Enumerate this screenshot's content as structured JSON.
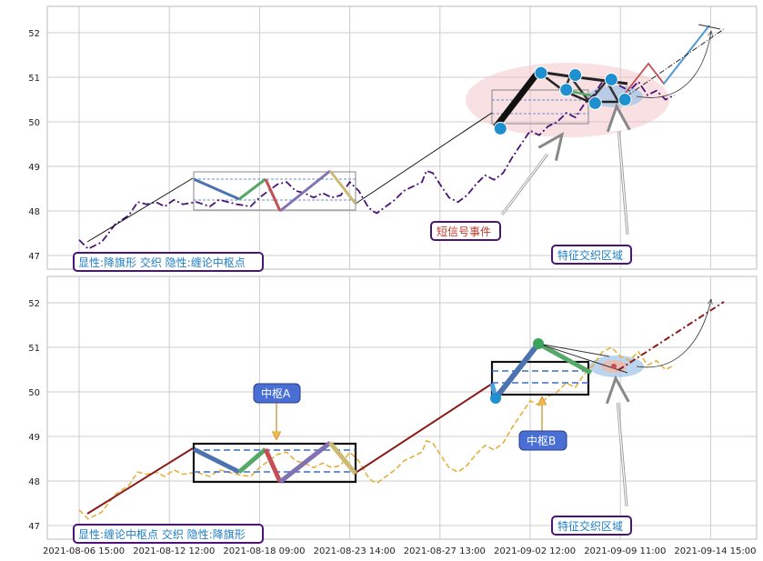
{
  "chart_data": {
    "type": "line",
    "x_ticks": [
      "2021-08-06 15:00",
      "2021-08-12 12:00",
      "2021-08-18 09:00",
      "2021-08-23 14:00",
      "2021-08-27 13:00",
      "2021-09-02 12:00",
      "2021-09-09 11:00",
      "2021-09-14 15:00"
    ],
    "y_ticks": [
      47,
      48,
      49,
      50,
      51,
      52
    ],
    "ylim": [
      46.7,
      52.6
    ],
    "grid": true,
    "price_series": [
      [
        0.0,
        47.35
      ],
      [
        0.1,
        47.15
      ],
      [
        0.25,
        47.3
      ],
      [
        0.4,
        47.7
      ],
      [
        0.55,
        47.9
      ],
      [
        0.65,
        48.2
      ],
      [
        0.75,
        48.15
      ],
      [
        0.85,
        48.2
      ],
      [
        0.95,
        48.1
      ],
      [
        1.05,
        48.25
      ],
      [
        1.15,
        48.15
      ],
      [
        1.3,
        48.2
      ],
      [
        1.45,
        48.1
      ],
      [
        1.55,
        48.25
      ],
      [
        1.65,
        48.2
      ],
      [
        1.75,
        48.15
      ],
      [
        1.9,
        48.1
      ],
      [
        2.0,
        48.3
      ],
      [
        2.1,
        48.45
      ],
      [
        2.2,
        48.6
      ],
      [
        2.3,
        48.65
      ],
      [
        2.4,
        48.45
      ],
      [
        2.5,
        48.4
      ],
      [
        2.6,
        48.3
      ],
      [
        2.7,
        48.4
      ],
      [
        2.8,
        48.3
      ],
      [
        2.9,
        48.35
      ],
      [
        3.0,
        48.65
      ],
      [
        3.1,
        48.45
      ],
      [
        3.2,
        48.1
      ],
      [
        3.25,
        48.0
      ],
      [
        3.3,
        47.95
      ],
      [
        3.4,
        48.1
      ],
      [
        3.5,
        48.25
      ],
      [
        3.6,
        48.45
      ],
      [
        3.7,
        48.55
      ],
      [
        3.8,
        48.65
      ],
      [
        3.85,
        48.9
      ],
      [
        3.92,
        48.85
      ],
      [
        4.0,
        48.6
      ],
      [
        4.1,
        48.3
      ],
      [
        4.2,
        48.2
      ],
      [
        4.3,
        48.35
      ],
      [
        4.4,
        48.6
      ],
      [
        4.5,
        48.8
      ],
      [
        4.6,
        48.7
      ],
      [
        4.7,
        48.85
      ],
      [
        4.8,
        49.2
      ],
      [
        4.9,
        49.5
      ],
      [
        5.0,
        49.8
      ],
      [
        5.1,
        49.7
      ],
      [
        5.2,
        49.9
      ],
      [
        5.3,
        50.0
      ],
      [
        5.4,
        50.2
      ],
      [
        5.5,
        50.1
      ],
      [
        5.6,
        50.4
      ],
      [
        5.7,
        50.6
      ],
      [
        5.8,
        50.9
      ],
      [
        5.9,
        51.0
      ],
      [
        6.0,
        50.8
      ],
      [
        6.1,
        50.7
      ],
      [
        6.2,
        50.9
      ],
      [
        6.3,
        50.6
      ],
      [
        6.4,
        50.7
      ],
      [
        6.5,
        50.5
      ],
      [
        6.6,
        50.6
      ]
    ],
    "bi_series": [
      [
        0.1,
        47.25
      ],
      [
        1.25,
        48.72
      ],
      [
        1.74,
        48.2
      ],
      [
        2.04,
        48.68
      ],
      [
        2.2,
        47.95
      ],
      [
        2.75,
        48.86
      ],
      [
        3.03,
        48.12
      ],
      [
        4.62,
        50.31
      ],
      [
        4.67,
        49.85
      ],
      [
        5.12,
        51.1
      ],
      [
        5.94,
        50.44
      ],
      [
        7.0,
        52.03
      ]
    ],
    "zs_a": {
      "x0": 1.25,
      "x1": 3.03,
      "y0": 47.98,
      "y1": 48.86,
      "gg": 48.72,
      "dd": 48.2,
      "zz": 48.46
    },
    "zs_b": {
      "x0": 4.62,
      "x1": 5.6,
      "y0": 49.95,
      "y1": 50.7,
      "gg": 50.43,
      "dd": 50.2
    },
    "top_markers": [
      [
        4.67,
        49.85
      ],
      [
        5.12,
        51.1
      ],
      [
        5.4,
        50.72
      ],
      [
        5.5,
        51.05
      ],
      [
        5.72,
        50.42
      ],
      [
        5.9,
        50.95
      ],
      [
        6.05,
        50.5
      ]
    ],
    "top_labels": {
      "panel_note": "显性:降旗形 交织 隐性:缠论中枢点",
      "short_signal": "短信号事件",
      "feature_zone": "特征交织区域"
    },
    "bottom_labels": {
      "panel_note": "显性:缠论中枢点 交织 隐性:降旗形",
      "zs_a": "中枢A",
      "zs_b": "中枢B",
      "feature_zone": "特征交织区域"
    }
  }
}
